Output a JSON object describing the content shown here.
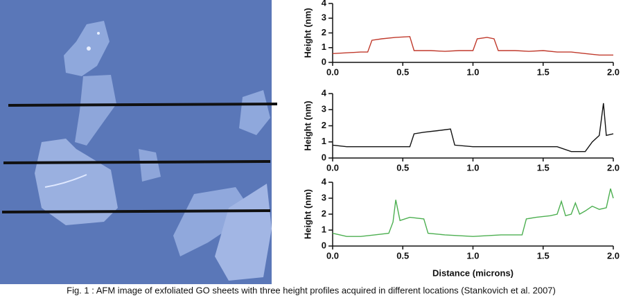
{
  "chart_data": [
    {
      "type": "line",
      "ylabel": "Height (nm)",
      "color": "#c0392b",
      "xlim": [
        0,
        2
      ],
      "ylim": [
        0,
        4
      ],
      "xticks": [
        {
          "value": 0,
          "label": "0.0"
        },
        0.5,
        {
          "value": 1,
          "label": "1.0"
        },
        1.5,
        {
          "value": 2,
          "label": "2.0"
        }
      ],
      "yticks": [
        0,
        1,
        2,
        3,
        4
      ],
      "x": [
        0,
        0.1,
        0.2,
        0.25,
        0.28,
        0.35,
        0.45,
        0.55,
        0.58,
        0.7,
        0.8,
        0.9,
        1.0,
        1.03,
        1.1,
        1.15,
        1.18,
        1.3,
        1.4,
        1.5,
        1.6,
        1.7,
        1.8,
        1.9,
        2.0
      ],
      "values": [
        0.6,
        0.65,
        0.7,
        0.7,
        1.5,
        1.6,
        1.7,
        1.75,
        0.8,
        0.8,
        0.75,
        0.8,
        0.8,
        1.6,
        1.7,
        1.6,
        0.8,
        0.8,
        0.75,
        0.8,
        0.7,
        0.7,
        0.6,
        0.5,
        0.5
      ]
    },
    {
      "type": "line",
      "ylabel": "Height (nm)",
      "color": "#111111",
      "xlim": [
        0,
        2
      ],
      "ylim": [
        0,
        4
      ],
      "xticks": [
        {
          "value": 0,
          "label": "0.0"
        },
        0.5,
        {
          "value": 1,
          "label": "1.0"
        },
        1.5,
        {
          "value": 2,
          "label": "2.0"
        }
      ],
      "yticks": [
        0,
        1,
        2,
        3,
        4
      ],
      "x": [
        0,
        0.1,
        0.2,
        0.3,
        0.4,
        0.55,
        0.58,
        0.65,
        0.75,
        0.84,
        0.87,
        1.0,
        1.2,
        1.4,
        1.6,
        1.7,
        1.8,
        1.85,
        1.9,
        1.93,
        1.95,
        2.0
      ],
      "values": [
        0.8,
        0.7,
        0.7,
        0.7,
        0.7,
        0.7,
        1.5,
        1.6,
        1.7,
        1.8,
        0.8,
        0.7,
        0.7,
        0.7,
        0.7,
        0.4,
        0.4,
        1.0,
        1.4,
        3.4,
        1.4,
        1.5
      ]
    },
    {
      "type": "line",
      "ylabel": "Height (nm)",
      "xlabel": "Distance (microns)",
      "color": "#4caf50",
      "xlim": [
        0,
        2
      ],
      "ylim": [
        0,
        4
      ],
      "xticks": [
        {
          "value": 0,
          "label": "0.0"
        },
        0.5,
        {
          "value": 1,
          "label": "1.0"
        },
        1.5,
        {
          "value": 2,
          "label": "2.0"
        }
      ],
      "yticks": [
        0,
        1,
        2,
        3,
        4
      ],
      "x": [
        0,
        0.1,
        0.2,
        0.3,
        0.4,
        0.43,
        0.45,
        0.48,
        0.55,
        0.65,
        0.68,
        0.8,
        1.0,
        1.2,
        1.35,
        1.38,
        1.45,
        1.55,
        1.6,
        1.63,
        1.66,
        1.7,
        1.73,
        1.76,
        1.8,
        1.85,
        1.9,
        1.95,
        1.98,
        2.0
      ],
      "values": [
        0.8,
        0.6,
        0.6,
        0.7,
        0.8,
        1.5,
        2.9,
        1.6,
        1.8,
        1.7,
        0.8,
        0.7,
        0.6,
        0.7,
        0.7,
        1.7,
        1.8,
        1.9,
        2.0,
        2.8,
        1.9,
        2.0,
        2.7,
        2.0,
        2.2,
        2.5,
        2.3,
        2.4,
        3.6,
        3.0
      ]
    }
  ],
  "caption": "Fig. 1 : AFM image of exfoliated GO sheets with three height profiles acquired in different locations (Stankovich et al. 2007)"
}
